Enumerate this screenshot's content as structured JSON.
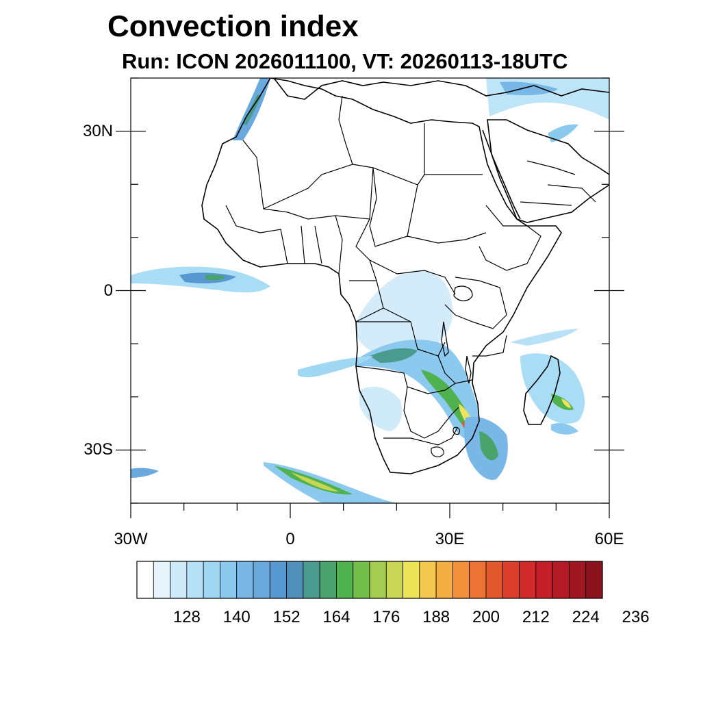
{
  "title": "Convection index",
  "subtitle": "Run: ICON 2026011100,  VT: 20260113-18UTC",
  "map": {
    "extent": {
      "lon_min": -30,
      "lon_max": 60,
      "lat_min": -40,
      "lat_max": 40
    },
    "lat_ticks": [
      {
        "value": 30,
        "label": "30N"
      },
      {
        "value": 0,
        "label": "0"
      },
      {
        "value": -30,
        "label": "30S"
      }
    ],
    "lon_ticks": [
      {
        "value": -30,
        "label": "30W"
      },
      {
        "value": 0,
        "label": "0"
      },
      {
        "value": 30,
        "label": "30E"
      },
      {
        "value": 60,
        "label": "60E"
      }
    ],
    "minor_tick_step": 10
  },
  "colorbar": {
    "labels": [
      "128",
      "140",
      "152",
      "164",
      "176",
      "188",
      "200",
      "212",
      "224",
      "236"
    ],
    "colors": [
      "#ffffff",
      "#e6f4fb",
      "#cfeaf8",
      "#b7e1f6",
      "#a0d8f4",
      "#8cc9ee",
      "#78b7e6",
      "#6aa9dd",
      "#5898d0",
      "#4f8fb8",
      "#4a9a8e",
      "#4aa36a",
      "#50b24e",
      "#74bf4c",
      "#a3cc50",
      "#c8d654",
      "#eee45a",
      "#f5c94f",
      "#f4ae44",
      "#f1923b",
      "#ec7334",
      "#e4582e",
      "#db3f2b",
      "#d12a2a",
      "#c41f28",
      "#b31a25",
      "#a01621",
      "#8b121c"
    ]
  }
}
